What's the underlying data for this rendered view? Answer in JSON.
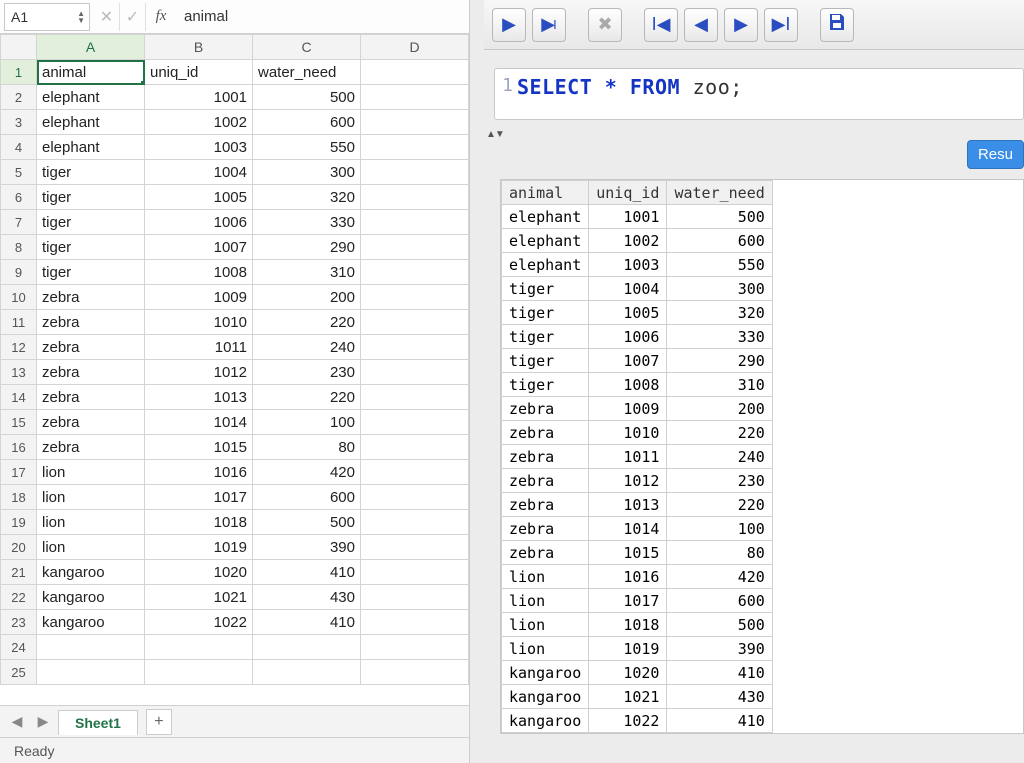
{
  "excel": {
    "name_box": "A1",
    "fx_label": "fx",
    "formula_value": "animal",
    "columns": [
      "A",
      "B",
      "C",
      "D"
    ],
    "headers": [
      "animal",
      "uniq_id",
      "water_need"
    ],
    "rows": [
      [
        "elephant",
        1001,
        500
      ],
      [
        "elephant",
        1002,
        600
      ],
      [
        "elephant",
        1003,
        550
      ],
      [
        "tiger",
        1004,
        300
      ],
      [
        "tiger",
        1005,
        320
      ],
      [
        "tiger",
        1006,
        330
      ],
      [
        "tiger",
        1007,
        290
      ],
      [
        "tiger",
        1008,
        310
      ],
      [
        "zebra",
        1009,
        200
      ],
      [
        "zebra",
        1010,
        220
      ],
      [
        "zebra",
        1011,
        240
      ],
      [
        "zebra",
        1012,
        230
      ],
      [
        "zebra",
        1013,
        220
      ],
      [
        "zebra",
        1014,
        100
      ],
      [
        "zebra",
        1015,
        80
      ],
      [
        "lion",
        1016,
        420
      ],
      [
        "lion",
        1017,
        600
      ],
      [
        "lion",
        1018,
        500
      ],
      [
        "lion",
        1019,
        390
      ],
      [
        "kangaroo",
        1020,
        410
      ],
      [
        "kangaroo",
        1021,
        430
      ],
      [
        "kangaroo",
        1022,
        410
      ]
    ],
    "empty_rows": [
      24,
      25
    ],
    "sheet_tab": "Sheet1",
    "status": "Ready",
    "active_cell": {
      "row": 1,
      "col": "A"
    },
    "colors": {
      "accent": "#217346",
      "grid_border": "#d4d4d4",
      "header_bg": "#f3f3f3"
    }
  },
  "sql": {
    "query_line_no": "1",
    "query_tokens": [
      {
        "t": "SELECT",
        "cls": "kw"
      },
      {
        "t": " ",
        "cls": ""
      },
      {
        "t": "*",
        "cls": "op"
      },
      {
        "t": " ",
        "cls": ""
      },
      {
        "t": "FROM",
        "cls": "kw"
      },
      {
        "t": " ",
        "cls": ""
      },
      {
        "t": "zoo;",
        "cls": "ident"
      }
    ],
    "results_button": "Resu",
    "result_columns": [
      "animal",
      "uniq_id",
      "water_need"
    ],
    "result_rows": [
      [
        "elephant",
        1001,
        500
      ],
      [
        "elephant",
        1002,
        600
      ],
      [
        "elephant",
        1003,
        550
      ],
      [
        "tiger",
        1004,
        300
      ],
      [
        "tiger",
        1005,
        320
      ],
      [
        "tiger",
        1006,
        330
      ],
      [
        "tiger",
        1007,
        290
      ],
      [
        "tiger",
        1008,
        310
      ],
      [
        "zebra",
        1009,
        200
      ],
      [
        "zebra",
        1010,
        220
      ],
      [
        "zebra",
        1011,
        240
      ],
      [
        "zebra",
        1012,
        230
      ],
      [
        "zebra",
        1013,
        220
      ],
      [
        "zebra",
        1014,
        100
      ],
      [
        "zebra",
        1015,
        80
      ],
      [
        "lion",
        1016,
        420
      ],
      [
        "lion",
        1017,
        600
      ],
      [
        "lion",
        1018,
        500
      ],
      [
        "lion",
        1019,
        390
      ],
      [
        "kangaroo",
        1020,
        410
      ],
      [
        "kangaroo",
        1021,
        430
      ],
      [
        "kangaroo",
        1022,
        410
      ]
    ],
    "colors": {
      "keyword": "#1435c4",
      "toolbar_icon": "#2a4ec0",
      "button_bg": "#3b8ee8",
      "panel_bg": "#ececec"
    }
  }
}
